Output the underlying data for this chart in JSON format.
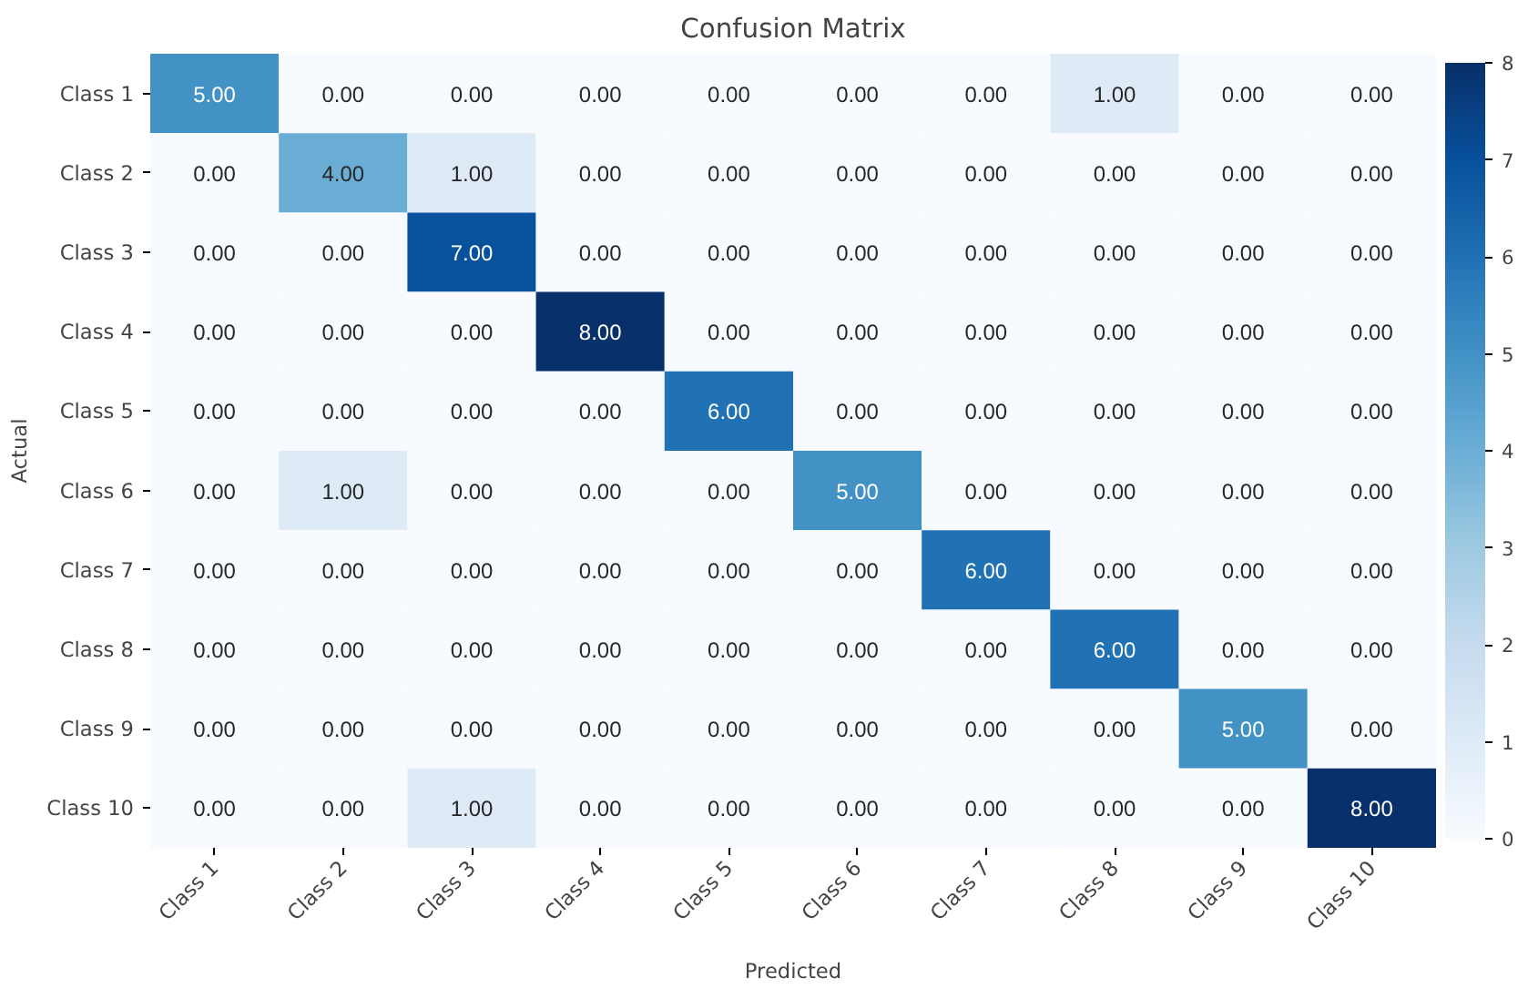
{
  "chart_data": {
    "type": "heatmap",
    "title": "Confusion Matrix",
    "xlabel": "Predicted",
    "ylabel": "Actual",
    "categories": [
      "Class 1",
      "Class 2",
      "Class 3",
      "Class 4",
      "Class 5",
      "Class 6",
      "Class 7",
      "Class 8",
      "Class 9",
      "Class 10"
    ],
    "y_categories": [
      "Class 1",
      "Class 2",
      "Class 3",
      "Class 4",
      "Class 5",
      "Class 6",
      "Class 7",
      "Class 8",
      "Class 9",
      "Class 10"
    ],
    "cells": [
      [
        5,
        0,
        0,
        0,
        0,
        0,
        0,
        1,
        0,
        0
      ],
      [
        0,
        4,
        1,
        0,
        0,
        0,
        0,
        0,
        0,
        0
      ],
      [
        0,
        0,
        7,
        0,
        0,
        0,
        0,
        0,
        0,
        0
      ],
      [
        0,
        0,
        0,
        8,
        0,
        0,
        0,
        0,
        0,
        0
      ],
      [
        0,
        0,
        0,
        0,
        6,
        0,
        0,
        0,
        0,
        0
      ],
      [
        0,
        1,
        0,
        0,
        0,
        5,
        0,
        0,
        0,
        0
      ],
      [
        0,
        0,
        0,
        0,
        0,
        0,
        6,
        0,
        0,
        0
      ],
      [
        0,
        0,
        0,
        0,
        0,
        0,
        0,
        6,
        0,
        0
      ],
      [
        0,
        0,
        0,
        0,
        0,
        0,
        0,
        0,
        5,
        0
      ],
      [
        0,
        0,
        1,
        0,
        0,
        0,
        0,
        0,
        0,
        8
      ]
    ],
    "cell_labels": [
      [
        "5.00",
        "0.00",
        "0.00",
        "0.00",
        "0.00",
        "0.00",
        "0.00",
        "1.00",
        "0.00",
        "0.00"
      ],
      [
        "0.00",
        "4.00",
        "1.00",
        "0.00",
        "0.00",
        "0.00",
        "0.00",
        "0.00",
        "0.00",
        "0.00"
      ],
      [
        "0.00",
        "0.00",
        "7.00",
        "0.00",
        "0.00",
        "0.00",
        "0.00",
        "0.00",
        "0.00",
        "0.00"
      ],
      [
        "0.00",
        "0.00",
        "0.00",
        "8.00",
        "0.00",
        "0.00",
        "0.00",
        "0.00",
        "0.00",
        "0.00"
      ],
      [
        "0.00",
        "0.00",
        "0.00",
        "0.00",
        "6.00",
        "0.00",
        "0.00",
        "0.00",
        "0.00",
        "0.00"
      ],
      [
        "0.00",
        "1.00",
        "0.00",
        "0.00",
        "0.00",
        "5.00",
        "0.00",
        "0.00",
        "0.00",
        "0.00"
      ],
      [
        "0.00",
        "0.00",
        "0.00",
        "0.00",
        "0.00",
        "0.00",
        "6.00",
        "0.00",
        "0.00",
        "0.00"
      ],
      [
        "0.00",
        "0.00",
        "0.00",
        "0.00",
        "0.00",
        "0.00",
        "0.00",
        "6.00",
        "0.00",
        "0.00"
      ],
      [
        "0.00",
        "0.00",
        "0.00",
        "0.00",
        "0.00",
        "0.00",
        "0.00",
        "0.00",
        "5.00",
        "0.00"
      ],
      [
        "0.00",
        "0.00",
        "1.00",
        "0.00",
        "0.00",
        "0.00",
        "0.00",
        "0.00",
        "0.00",
        "8.00"
      ]
    ],
    "clim": [
      0,
      8
    ],
    "cticks": [
      0,
      1,
      2,
      3,
      4,
      5,
      6,
      7,
      8
    ]
  }
}
